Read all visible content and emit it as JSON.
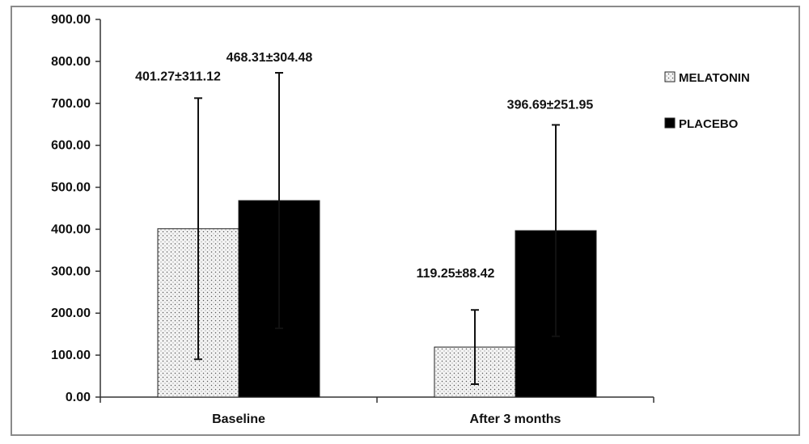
{
  "chart_data": {
    "type": "bar",
    "categories": [
      "Baseline",
      "After 3 months"
    ],
    "series": [
      {
        "name": "MELATONIN",
        "values": [
          401.27,
          119.25
        ],
        "errors": [
          311.12,
          88.42
        ],
        "labels": [
          "401.27±311.12",
          "119.25±88.42"
        ],
        "fill": "dotted",
        "color": "#f2f2f2"
      },
      {
        "name": "PLACEBO",
        "values": [
          468.31,
          396.69
        ],
        "errors": [
          304.48,
          251.95
        ],
        "labels": [
          "468.31±304.48",
          "396.69±251.95"
        ],
        "fill": "solid",
        "color": "#000000"
      }
    ],
    "ylim": [
      0,
      900
    ],
    "yticks": [
      "0.00",
      "100.00",
      "200.00",
      "300.00",
      "400.00",
      "500.00",
      "600.00",
      "700.00",
      "800.00",
      "900.00"
    ],
    "title": "",
    "xlabel": "",
    "ylabel": "",
    "grid": false,
    "legend_position": "right"
  }
}
